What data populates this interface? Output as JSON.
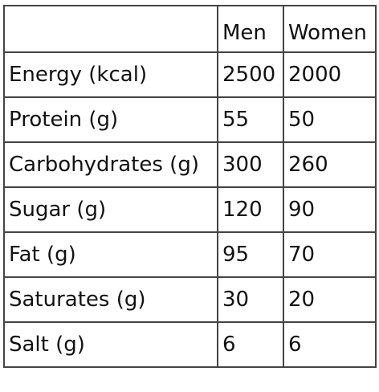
{
  "table": {
    "headers": [
      "",
      "Men",
      "Women"
    ],
    "rows": [
      {
        "label": "Energy (kcal)",
        "men": "2500",
        "women": "2000"
      },
      {
        "label": "Protein (g)",
        "men": "55",
        "women": "50"
      },
      {
        "label": "Carbohydrates (g)",
        "men": "300",
        "women": "260"
      },
      {
        "label": "Sugar (g)",
        "men": "120",
        "women": "90"
      },
      {
        "label": "Fat (g)",
        "men": "95",
        "women": "70"
      },
      {
        "label": "Saturates (g)",
        "men": "30",
        "women": "20"
      },
      {
        "label": "Salt (g)",
        "men": "6",
        "women": "6"
      }
    ]
  }
}
